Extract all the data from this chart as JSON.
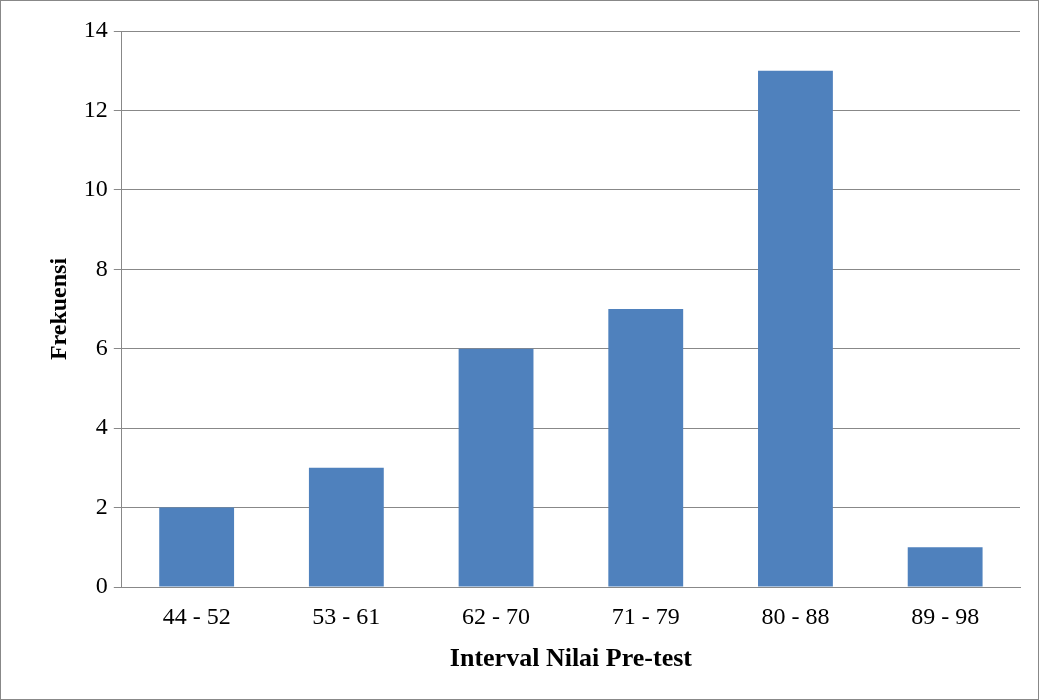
{
  "chart_data": {
    "type": "bar",
    "xlabel": "Interval Nilai Pre-test",
    "ylabel": "Frekuensi",
    "categories": [
      "44 - 52",
      "53 - 61",
      "62 - 70",
      "71 - 79",
      "80 - 88",
      "89 - 98"
    ],
    "values": [
      2,
      3,
      6,
      7,
      13,
      1
    ],
    "color": "#4f81bd",
    "ylim": [
      0,
      14
    ],
    "yticks": [
      0,
      2,
      4,
      6,
      8,
      10,
      12,
      14
    ],
    "grid": "y",
    "legend": false
  }
}
